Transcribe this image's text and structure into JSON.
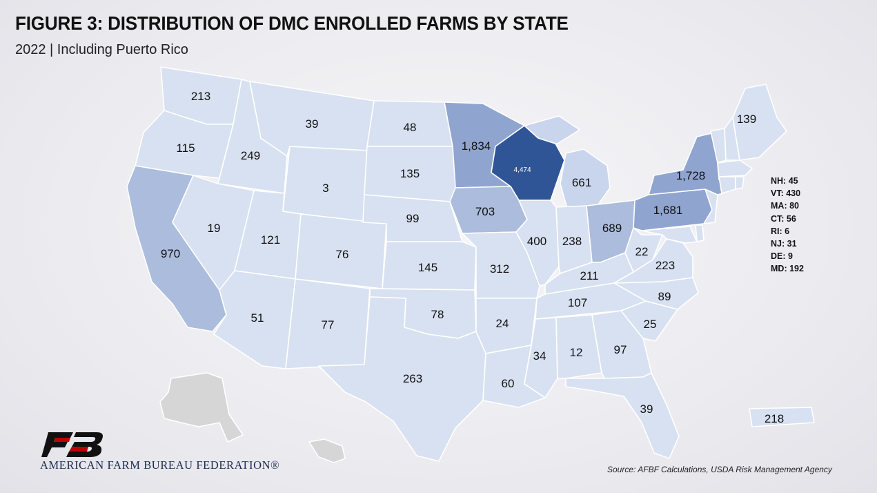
{
  "title": "FIGURE 3: DISTRIBUTION OF DMC ENROLLED FARMS BY STATE",
  "subtitle": "2022 | Including Puerto Rico",
  "source": "Source: AFBF Calculations, USDA Risk Management Agency",
  "org_name": "AMERICAN FARM BUREAU FEDERATION®",
  "logo_letters": "FB",
  "colors": {
    "lightest": "#d8e1f1",
    "light": "#c9d5ec",
    "medium": "#abbcdd",
    "darker": "#8fa5d0",
    "darkest": "#2f5597",
    "unlabeled": "#d6d6d6",
    "logo_red": "#c00000",
    "logo_black": "#111111"
  },
  "states": {
    "WA": "213",
    "OR": "115",
    "CA": "970",
    "ID": "249",
    "NV": "19",
    "MT": "39",
    "WY": "3",
    "UT": "121",
    "AZ": "51",
    "CO": "76",
    "NM": "77",
    "ND": "48",
    "SD": "135",
    "NE": "99",
    "KS": "145",
    "OK": "78",
    "TX": "263",
    "MN": "1,834",
    "IA": "703",
    "MO": "312",
    "AR": "24",
    "LA": "60",
    "WI": "4,474",
    "IL": "400",
    "MI": "661",
    "IN": "238",
    "OH": "689",
    "KY": "211",
    "TN": "107",
    "MS": "34",
    "AL": "12",
    "GA": "97",
    "FL": "39",
    "SC": "25",
    "NC": "89",
    "VA": "223",
    "WV": "22",
    "PA": "1,681",
    "NY": "1,728",
    "ME": "139",
    "PR": "218"
  },
  "small_states": [
    "NH: 45",
    "VT: 430",
    "MA: 80",
    "CT: 56",
    "RI: 6",
    "NJ: 31",
    "DE: 9",
    "MD: 192"
  ]
}
